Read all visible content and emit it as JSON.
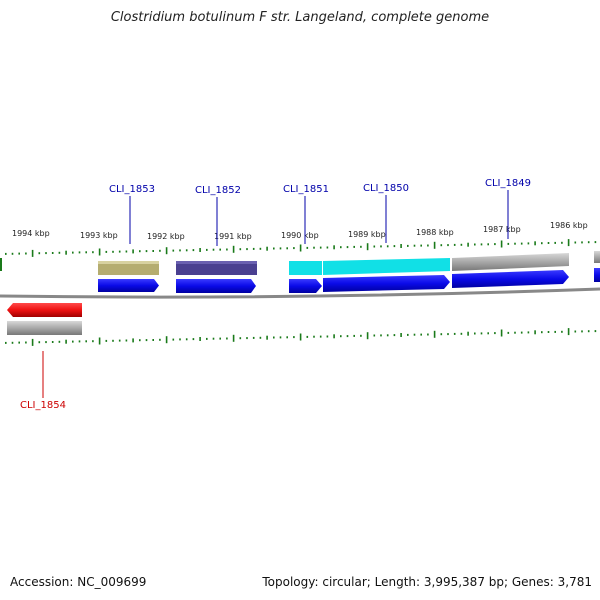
{
  "title": "Clostridium botulinum F str. Langeland, complete genome",
  "accession": "Accession: NC_009699",
  "topology": "Topology: circular; Length: 3,995,387 bp; Genes: 3,781",
  "tick_labels": [
    "1994 kbp",
    "1993 kbp",
    "1992 kbp",
    "1991 kbp",
    "1990 kbp",
    "1989 kbp",
    "1988 kbp",
    "1987 kbp",
    "1986 kbp"
  ],
  "genes": [
    {
      "label": "CLI_1853",
      "color": "#0000aa",
      "strand": "+",
      "feature_color": "#b5ad70"
    },
    {
      "label": "CLI_1852",
      "color": "#0000aa",
      "strand": "+",
      "feature_color": "#4a4090"
    },
    {
      "label": "CLI_1851",
      "color": "#0000aa",
      "strand": "+",
      "feature_color": "#11e0e6"
    },
    {
      "label": "CLI_1850",
      "color": "#0000aa",
      "strand": "+",
      "feature_color": "#11e0e6"
    },
    {
      "label": "CLI_1849",
      "color": "#0000aa",
      "strand": "+",
      "feature_color": "#b0b0b0"
    },
    {
      "label": "CLI_1854",
      "color": "#cc0000",
      "strand": "-",
      "feature_color": "#ff1010"
    }
  ],
  "colors": {
    "tick": "#1a7a1a",
    "backbone": "#808080",
    "cds_forward": "#0a0ae8",
    "cds_reverse": "#ee1111",
    "grey_feature": "#a8a8a8"
  }
}
